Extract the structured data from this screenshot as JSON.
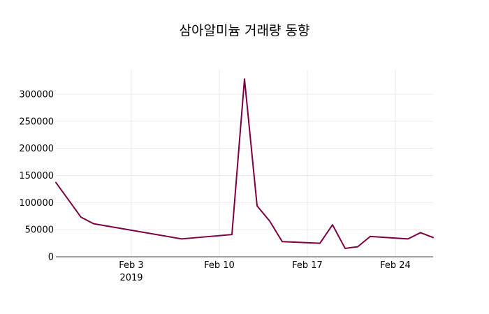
{
  "chart_data": {
    "type": "line",
    "title": "삼아알미늄 거래량 동향",
    "xlabel": "",
    "ylabel": "",
    "x_axis": {
      "type": "date",
      "range": [
        "2019-01-28",
        "2019-02-27"
      ],
      "tick_labels": [
        {
          "date": "2019-02-03",
          "label": "Feb 3",
          "sublabel": "2019"
        },
        {
          "date": "2019-02-10",
          "label": "Feb 10",
          "sublabel": ""
        },
        {
          "date": "2019-02-17",
          "label": "Feb 17",
          "sublabel": ""
        },
        {
          "date": "2019-02-24",
          "label": "Feb 24",
          "sublabel": ""
        }
      ]
    },
    "y_axis": {
      "range": [
        0,
        345000
      ],
      "ticks": [
        0,
        50000,
        100000,
        150000,
        200000,
        250000,
        300000
      ],
      "tick_labels": [
        "0",
        "50000",
        "100000",
        "150000",
        "200000",
        "250000",
        "300000"
      ]
    },
    "grid": true,
    "series": [
      {
        "color": "#7b0041",
        "x": [
          "2019-01-28",
          "2019-01-30",
          "2019-01-31",
          "2019-02-07",
          "2019-02-08",
          "2019-02-11",
          "2019-02-12",
          "2019-02-13",
          "2019-02-14",
          "2019-02-15",
          "2019-02-18",
          "2019-02-19",
          "2019-02-20",
          "2019-02-21",
          "2019-02-22",
          "2019-02-25",
          "2019-02-26",
          "2019-02-27"
        ],
        "y": [
          137000,
          73000,
          61000,
          33000,
          35000,
          41000,
          328000,
          94000,
          66000,
          28000,
          25000,
          59000,
          15500,
          18500,
          37500,
          33000,
          44500,
          35500
        ]
      }
    ]
  }
}
